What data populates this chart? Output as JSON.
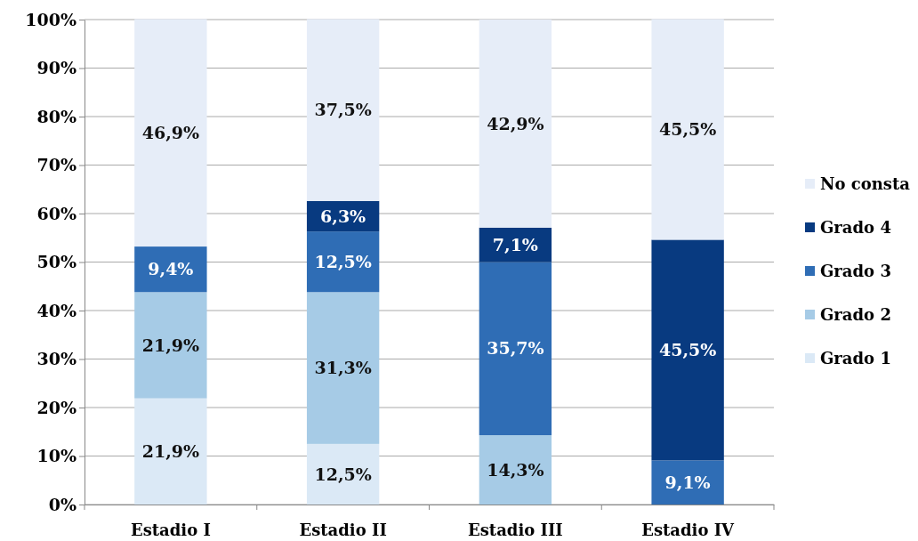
{
  "chart_data": {
    "type": "bar",
    "stacked": true,
    "categories": [
      "Estadio I",
      "Estadio II",
      "Estadio III",
      "Estadio IV"
    ],
    "series": [
      {
        "name": "Grado 1",
        "color": "#dbe9f6",
        "values": [
          21.9,
          12.5,
          0,
          0
        ],
        "value_labels": [
          "21,9%",
          "12,5%",
          null,
          null
        ]
      },
      {
        "name": "Grado 2",
        "color": "#a6cbe6",
        "values": [
          21.9,
          31.3,
          14.3,
          0
        ],
        "value_labels": [
          "21,9%",
          "31,3%",
          "14,3%",
          null
        ]
      },
      {
        "name": "Grado 3",
        "color": "#2f6db5",
        "values": [
          9.4,
          12.5,
          35.7,
          9.1
        ],
        "value_labels": [
          "9,4%",
          "12,5%",
          "35,7%",
          "9,1%"
        ]
      },
      {
        "name": "Grado 4",
        "color": "#083a80",
        "values": [
          0,
          6.3,
          7.1,
          45.5
        ],
        "value_labels": [
          null,
          "6,3%",
          "7,1%",
          "45,5%"
        ]
      },
      {
        "name": "No consta",
        "color": "#e6edf8",
        "values": [
          46.9,
          37.5,
          42.9,
          45.5
        ],
        "value_labels": [
          "46,9%",
          "37,5%",
          "42,9%",
          "45,5%"
        ]
      }
    ],
    "ylim": [
      0,
      100
    ],
    "yticks": [
      {
        "value": 0,
        "label": "0%"
      },
      {
        "value": 10,
        "label": "10%"
      },
      {
        "value": 20,
        "label": "20%"
      },
      {
        "value": 30,
        "label": "30%"
      },
      {
        "value": 40,
        "label": "40%"
      },
      {
        "value": 50,
        "label": "50%"
      },
      {
        "value": 60,
        "label": "60%"
      },
      {
        "value": 70,
        "label": "70%"
      },
      {
        "value": 80,
        "label": "80%"
      },
      {
        "value": 90,
        "label": "90%"
      },
      {
        "value": 100,
        "label": "100%"
      }
    ],
    "grid": "y",
    "legend": "right"
  }
}
